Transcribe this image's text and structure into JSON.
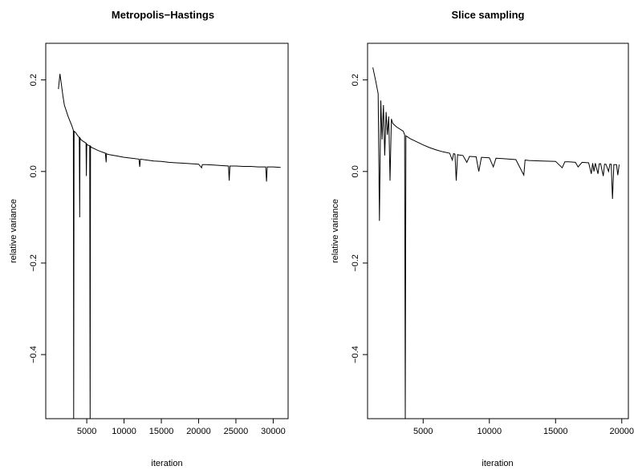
{
  "chart_data": [
    {
      "type": "line",
      "title": "Metropolis−Hastings",
      "xlabel": "iteration",
      "ylabel": "relative variance",
      "xlim": [
        -500,
        32000
      ],
      "ylim": [
        -0.54,
        0.28
      ],
      "xticks": [
        5000,
        10000,
        15000,
        20000,
        25000,
        30000
      ],
      "xtick_labels": [
        "5000",
        "10000",
        "15000",
        "20000",
        "25000",
        "30000"
      ],
      "yticks": [
        -0.4,
        -0.2,
        0.0,
        0.2
      ],
      "ytick_labels": [
        "−0.4",
        "−0.2",
        "0.0",
        "0.2"
      ],
      "grid": false,
      "legend": "none",
      "line_color": "#000000",
      "series": [
        {
          "x": [
            1200,
            1400,
            1600,
            1800,
            2000,
            2500,
            3000,
            3200,
            3250,
            3300,
            3400,
            3500,
            3800,
            4000,
            4050,
            4100,
            4200,
            4500,
            4900,
            4950,
            5000,
            5100,
            5400,
            5450,
            5500,
            5600,
            6000,
            6500,
            7000,
            7500,
            7600,
            7650,
            7700,
            8000,
            9000,
            10000,
            11000,
            12000,
            12100,
            12200,
            13000,
            14000,
            15000,
            16000,
            17000,
            18000,
            19000,
            20000,
            20400,
            20500,
            20600,
            21000,
            22000,
            23000,
            24000,
            24100,
            24200,
            25000,
            26000,
            27000,
            28000,
            29000,
            29100,
            29200,
            30000,
            31000
          ],
          "y": [
            0.18,
            0.213,
            0.19,
            0.165,
            0.145,
            0.12,
            0.1,
            0.09,
            -0.54,
            0.088,
            0.087,
            0.085,
            0.078,
            0.074,
            -0.1,
            0.073,
            0.07,
            0.066,
            0.062,
            -0.01,
            0.06,
            0.058,
            0.056,
            -0.54,
            0.055,
            0.053,
            0.05,
            0.046,
            0.043,
            0.04,
            0.02,
            0.039,
            0.038,
            0.037,
            0.034,
            0.031,
            0.029,
            0.027,
            0.01,
            0.027,
            0.025,
            0.023,
            0.022,
            0.02,
            0.019,
            0.018,
            0.017,
            0.016,
            0.008,
            0.015,
            0.015,
            0.015,
            0.014,
            0.013,
            0.012,
            -0.02,
            0.012,
            0.012,
            0.011,
            0.011,
            0.01,
            0.01,
            -0.022,
            0.01,
            0.01,
            0.009
          ]
        }
      ]
    },
    {
      "type": "line",
      "title": "Slice sampling",
      "xlabel": "iteration",
      "ylabel": "relative variance",
      "xlim": [
        800,
        20500
      ],
      "ylim": [
        -0.54,
        0.28
      ],
      "xticks": [
        5000,
        10000,
        15000,
        20000
      ],
      "xtick_labels": [
        "5000",
        "10000",
        "15000",
        "20000"
      ],
      "yticks": [
        -0.4,
        -0.2,
        0.0,
        0.2
      ],
      "ytick_labels": [
        "−0.4",
        "−0.2",
        "0.0",
        "0.2"
      ],
      "grid": false,
      "legend": "none",
      "line_color": "#000000",
      "series": [
        {
          "x": [
            1200,
            1400,
            1600,
            1700,
            1800,
            1900,
            2000,
            2100,
            2200,
            2300,
            2400,
            2500,
            2600,
            2700,
            3000,
            3500,
            3600,
            3650,
            3700,
            4000,
            4500,
            5000,
            5500,
            6000,
            6500,
            7000,
            7200,
            7300,
            7400,
            7500,
            7600,
            7700,
            8000,
            8300,
            8500,
            9000,
            9200,
            9400,
            10000,
            10300,
            10500,
            11000,
            12000,
            12600,
            12700,
            13000,
            14000,
            15000,
            15500,
            15700,
            16000,
            16500,
            16700,
            17000,
            17500,
            17700,
            17800,
            17900,
            18000,
            18200,
            18300,
            18400,
            18600,
            18700,
            18800,
            19000,
            19100,
            19200,
            19300,
            19400,
            19500,
            19600,
            19700,
            19800
          ],
          "y": [
            0.227,
            0.2,
            0.17,
            -0.108,
            0.155,
            0.07,
            0.145,
            0.035,
            0.13,
            0.08,
            0.12,
            -0.02,
            0.115,
            0.105,
            0.097,
            0.088,
            0.08,
            -0.54,
            0.078,
            0.072,
            0.065,
            0.058,
            0.052,
            0.047,
            0.043,
            0.04,
            0.025,
            0.039,
            0.038,
            -0.02,
            0.037,
            0.036,
            0.035,
            0.02,
            0.033,
            0.032,
            0.0,
            0.031,
            0.03,
            0.01,
            0.029,
            0.028,
            0.026,
            -0.008,
            0.025,
            0.024,
            0.023,
            0.022,
            0.008,
            0.021,
            0.021,
            0.02,
            0.01,
            0.02,
            0.019,
            -0.005,
            0.018,
            0.0,
            0.018,
            -0.005,
            0.017,
            0.017,
            -0.01,
            0.016,
            0.016,
            0.0,
            0.016,
            0.016,
            -0.06,
            0.015,
            0.015,
            0.015,
            -0.008,
            0.015
          ]
        }
      ]
    }
  ]
}
